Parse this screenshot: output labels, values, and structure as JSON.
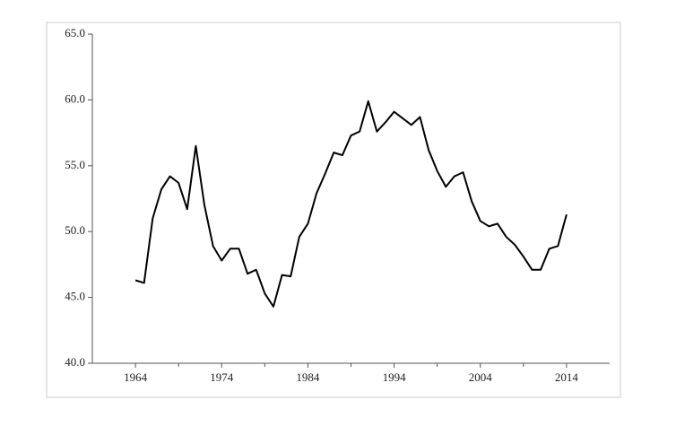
{
  "chart_data": {
    "type": "line",
    "x": [
      1964,
      1965,
      1966,
      1967,
      1968,
      1969,
      1970,
      1971,
      1972,
      1973,
      1974,
      1975,
      1976,
      1977,
      1978,
      1979,
      1980,
      1981,
      1982,
      1983,
      1984,
      1985,
      1986,
      1987,
      1988,
      1989,
      1990,
      1991,
      1992,
      1993,
      1994,
      1995,
      1996,
      1997,
      1998,
      1999,
      2000,
      2001,
      2002,
      2003,
      2004,
      2005,
      2006,
      2007,
      2008,
      2009,
      2010,
      2011,
      2012,
      2013,
      2014
    ],
    "values": [
      46.3,
      46.1,
      51.0,
      53.2,
      54.2,
      53.7,
      51.7,
      56.5,
      52.0,
      48.9,
      47.8,
      48.7,
      48.7,
      46.8,
      47.1,
      45.3,
      44.3,
      46.7,
      46.6,
      49.6,
      50.6,
      52.9,
      54.4,
      56.0,
      55.8,
      57.3,
      57.6,
      59.9,
      57.6,
      58.3,
      59.1,
      58.6,
      58.1,
      58.7,
      56.2,
      54.6,
      53.4,
      54.2,
      54.5,
      52.3,
      50.8,
      50.4,
      50.6,
      49.6,
      49.0,
      48.1,
      47.1,
      47.1,
      48.7,
      48.9,
      51.3
    ],
    "color": "#000000",
    "xlim": [
      1959,
      2019
    ],
    "xticks": [
      1964,
      1974,
      1984,
      1994,
      2004,
      2014
    ],
    "xminorticks": [
      1969,
      1979,
      1989,
      1999,
      2009
    ],
    "ylim": [
      40,
      65
    ],
    "yticks": [
      {
        "value": 40,
        "label": "40.0"
      },
      {
        "value": 45,
        "label": "45.0"
      },
      {
        "value": 50,
        "label": "50.0"
      },
      {
        "value": 55,
        "label": "55.0"
      },
      {
        "value": 60,
        "label": "60.0"
      },
      {
        "value": 65,
        "label": "65.0"
      }
    ]
  }
}
